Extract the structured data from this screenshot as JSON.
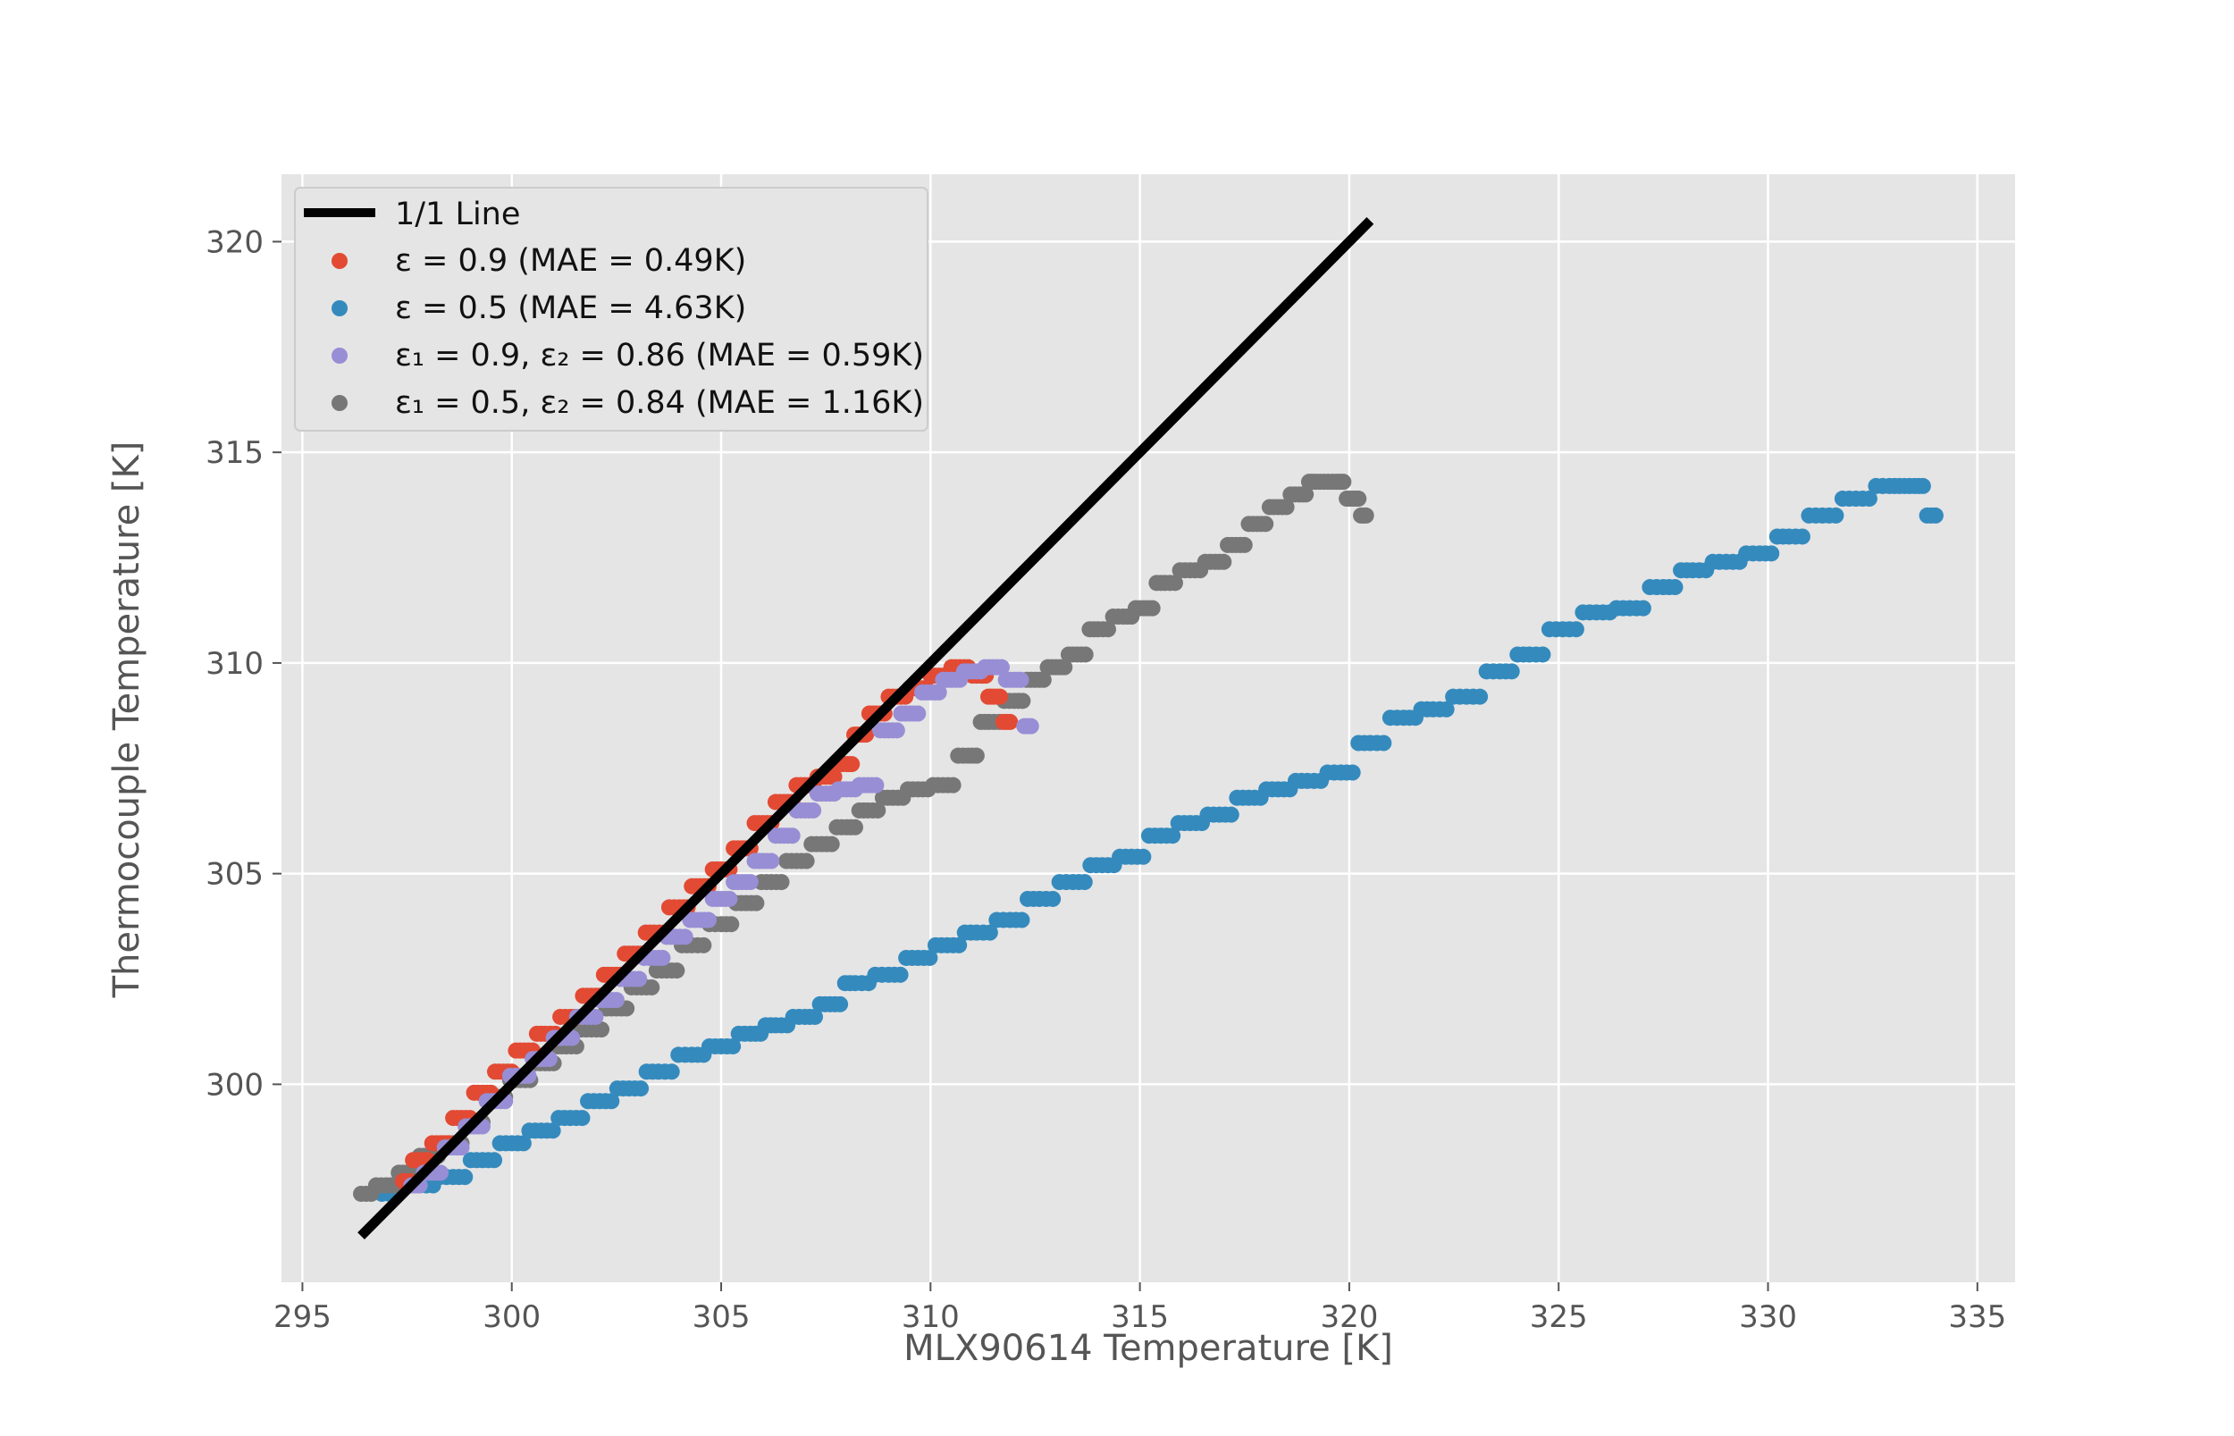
{
  "chart_data": {
    "type": "scatter",
    "title": "",
    "xlabel": "MLX90614 Temperature [K]",
    "ylabel": "Thermocouple Temperature [K]",
    "xlim": [
      294.5,
      335.9
    ],
    "ylim": [
      295.3,
      321.6
    ],
    "xticks": [
      295,
      300,
      305,
      310,
      315,
      320,
      325,
      330,
      335
    ],
    "yticks": [
      300,
      305,
      310,
      315,
      320
    ],
    "grid": true,
    "legend_position": "top-left",
    "legend": [
      "1/1 Line",
      "ε = 0.9 (MAE = 0.49K)",
      "ε = 0.5 (MAE = 4.63K)",
      "ε₁ = 0.9, ε₂ =  0.86 (MAE = 0.59K)",
      "ε₁ = 0.5, ε₂ =  0.84 (MAE = 1.16K)"
    ],
    "line": {
      "name": "1/1 Line",
      "x": [
        296.4,
        320.5
      ],
      "y": [
        296.4,
        320.5
      ],
      "color": "#000000"
    },
    "series": [
      {
        "name": "ε = 0.5 (MAE = 4.63K)",
        "color": "#348ABD",
        "x": [
          296.9,
          297.8,
          298.6,
          299.3,
          300.0,
          300.7,
          301.4,
          302.1,
          302.8,
          303.5,
          304.3,
          305.0,
          305.7,
          306.3,
          307.0,
          307.6,
          308.2,
          309.0,
          309.7,
          310.4,
          311.1,
          311.9,
          312.6,
          313.4,
          314.1,
          314.8,
          315.5,
          316.2,
          316.9,
          317.6,
          318.3,
          319.0,
          319.8,
          320.5,
          321.3,
          322.0,
          322.8,
          323.6,
          324.3,
          325.1,
          325.9,
          326.7,
          327.5,
          328.2,
          329.0,
          329.8,
          330.5,
          331.3,
          332.1,
          332.9,
          333.5,
          334.0
        ],
        "y": [
          297.4,
          297.6,
          297.8,
          298.2,
          298.6,
          298.9,
          299.2,
          299.6,
          299.9,
          300.3,
          300.7,
          300.9,
          301.2,
          301.4,
          301.6,
          301.9,
          302.4,
          302.6,
          303.0,
          303.3,
          303.6,
          303.9,
          304.4,
          304.8,
          305.2,
          305.4,
          305.9,
          306.2,
          306.4,
          306.8,
          307.0,
          307.2,
          307.4,
          308.1,
          308.7,
          308.9,
          309.2,
          309.8,
          310.2,
          310.8,
          311.2,
          311.3,
          311.8,
          312.2,
          312.4,
          312.6,
          313.0,
          313.5,
          313.9,
          314.2,
          314.2,
          313.5
        ]
      },
      {
        "name": "ε₁ = 0.5, ε₂ =  0.84 (MAE = 1.16K)",
        "color": "#777777",
        "x": [
          296.4,
          297.0,
          297.5,
          298.0,
          298.6,
          299.1,
          299.6,
          300.2,
          300.8,
          301.3,
          301.9,
          302.5,
          303.1,
          303.7,
          304.3,
          305.0,
          305.6,
          306.2,
          306.8,
          307.4,
          308.0,
          308.5,
          309.1,
          309.7,
          310.3,
          310.9,
          311.4,
          312.0,
          312.5,
          313.0,
          313.5,
          314.0,
          314.6,
          315.1,
          315.6,
          316.2,
          316.8,
          317.3,
          317.8,
          318.3,
          318.8,
          319.2,
          319.7,
          320.1,
          320.4
        ],
        "y": [
          297.4,
          297.6,
          297.9,
          298.3,
          298.6,
          299.1,
          299.7,
          300.1,
          300.5,
          300.9,
          301.3,
          301.8,
          302.3,
          302.7,
          303.3,
          303.8,
          304.3,
          304.8,
          305.3,
          305.7,
          306.1,
          306.5,
          306.8,
          307.0,
          307.1,
          307.8,
          308.6,
          309.1,
          309.6,
          309.9,
          310.2,
          310.8,
          311.1,
          311.3,
          311.9,
          312.2,
          312.4,
          312.8,
          313.3,
          313.7,
          314.0,
          314.3,
          314.3,
          313.9,
          313.5
        ]
      },
      {
        "name": "ε = 0.9 (MAE = 0.49K)",
        "color": "#E24A33",
        "x": [
          297.4,
          297.8,
          298.3,
          298.8,
          299.3,
          299.8,
          300.3,
          300.8,
          301.4,
          301.9,
          302.4,
          302.9,
          303.4,
          304.0,
          304.5,
          305.0,
          305.5,
          306.0,
          306.5,
          307.0,
          307.5,
          308.0,
          308.3,
          308.7,
          309.2,
          309.7,
          310.2,
          310.7,
          311.2,
          311.5,
          311.9
        ],
        "y": [
          297.7,
          298.2,
          298.6,
          299.2,
          299.8,
          300.3,
          300.8,
          301.2,
          301.6,
          302.1,
          302.6,
          303.1,
          303.6,
          304.2,
          304.7,
          305.1,
          305.6,
          306.2,
          306.7,
          307.1,
          307.3,
          307.6,
          308.3,
          308.8,
          309.2,
          309.4,
          309.7,
          309.9,
          309.7,
          309.2,
          308.6
        ]
      },
      {
        "name": "ε₁ = 0.9, ε₂ =  0.86 (MAE = 0.59K)",
        "color": "#988ED5",
        "x": [
          297.6,
          298.1,
          298.6,
          299.1,
          299.6,
          300.2,
          300.7,
          301.2,
          301.8,
          302.3,
          302.8,
          303.4,
          303.9,
          304.5,
          305.0,
          305.5,
          306.0,
          306.5,
          307.0,
          307.5,
          308.0,
          308.5,
          309.0,
          309.5,
          310.0,
          310.5,
          311.0,
          311.5,
          312.0,
          312.4
        ],
        "y": [
          297.6,
          297.9,
          298.5,
          299.0,
          299.6,
          300.2,
          300.6,
          301.1,
          301.6,
          302.0,
          302.5,
          303.0,
          303.5,
          303.9,
          304.4,
          304.8,
          305.3,
          305.9,
          306.5,
          306.9,
          307.0,
          307.1,
          308.4,
          308.8,
          309.3,
          309.6,
          309.8,
          309.9,
          309.6,
          308.5
        ]
      }
    ]
  }
}
